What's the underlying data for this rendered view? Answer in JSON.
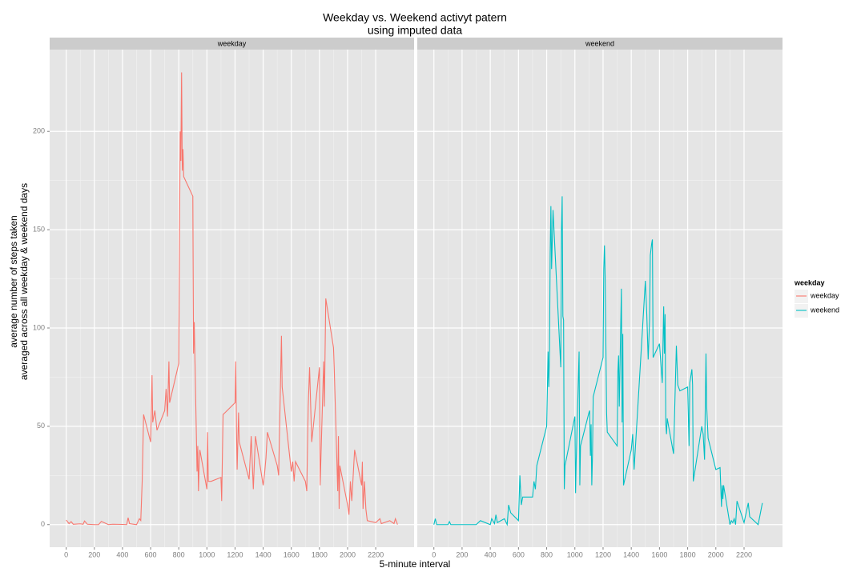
{
  "chart_data": {
    "type": "line",
    "title": "Weekday vs. Weekend activyt patern",
    "subtitle": "using imputed data",
    "x_label": "5-minute interval",
    "y_label": [
      "average number of steps taken",
      "averaged across all weekday & weekend days"
    ],
    "legend_title": "weekday",
    "xlim": [
      -117.75,
      2472.75
    ],
    "xticks": [
      0,
      200,
      400,
      600,
      800,
      1000,
      1200,
      1400,
      1600,
      1800,
      2000,
      2200
    ],
    "ylim": [
      -11.5,
      241.6
    ],
    "yticks": [
      0,
      50,
      100,
      150,
      200
    ],
    "grid": true,
    "series": [
      {
        "name": "weekday",
        "color": "#F8766D",
        "x": [
          0,
          20,
          35,
          50,
          100,
          120,
          130,
          150,
          200,
          230,
          250,
          300,
          330,
          400,
          430,
          440,
          450,
          500,
          520,
          530,
          540,
          550,
          600,
          610,
          615,
          630,
          645,
          700,
          710,
          720,
          730,
          735,
          800,
          810,
          815,
          820,
          825,
          830,
          835,
          900,
          905,
          910,
          915,
          930,
          935,
          940,
          945,
          950,
          1000,
          1005,
          1010,
          1030,
          1100,
          1105,
          1115,
          1130,
          1200,
          1205,
          1210,
          1215,
          1225,
          1230,
          1300,
          1315,
          1330,
          1345,
          1400,
          1410,
          1420,
          1430,
          1500,
          1510,
          1530,
          1535,
          1600,
          1610,
          1620,
          1630,
          1700,
          1710,
          1720,
          1730,
          1745,
          1800,
          1805,
          1830,
          1835,
          1845,
          1900,
          1905,
          1930,
          1935,
          1940,
          1945,
          2000,
          2010,
          2020,
          2030,
          2050,
          2100,
          2105,
          2110,
          2120,
          2130,
          2140,
          2200,
          2230,
          2240,
          2300,
          2330,
          2340,
          2355
        ],
        "values": [
          2.3,
          0.5,
          1.5,
          0.2,
          0.4,
          0.2,
          1.8,
          0.2,
          0,
          0,
          1.6,
          0,
          0.2,
          0.1,
          0,
          3.5,
          0.5,
          0,
          3,
          2.1,
          22,
          56,
          42,
          76,
          52,
          58,
          48,
          58,
          69,
          55,
          83,
          62,
          82,
          200,
          185,
          230,
          180,
          191,
          177,
          167,
          87,
          103,
          84,
          27,
          40,
          17,
          30,
          38,
          18,
          47,
          22,
          22,
          24,
          12,
          56,
          57,
          62,
          83,
          49,
          28,
          57,
          42,
          23,
          45,
          18,
          45,
          20,
          26,
          34,
          47,
          30,
          25,
          96,
          70,
          27,
          32,
          22,
          32,
          22,
          17,
          60,
          80,
          42,
          80,
          20,
          83,
          60,
          115,
          90,
          80,
          17,
          45,
          8,
          30,
          10,
          5,
          22,
          12,
          38,
          20,
          32,
          8,
          22,
          8,
          2,
          1,
          3,
          0.5,
          2,
          0.5,
          3,
          0
        ]
      },
      {
        "name": "weekend",
        "color": "#00BFC4",
        "x": [
          0,
          10,
          20,
          100,
          110,
          120,
          200,
          300,
          330,
          400,
          410,
          430,
          440,
          450,
          500,
          520,
          530,
          545,
          600,
          610,
          620,
          630,
          700,
          710,
          720,
          730,
          800,
          810,
          815,
          820,
          825,
          830,
          835,
          845,
          900,
          905,
          910,
          915,
          920,
          925,
          930,
          1000,
          1005,
          1010,
          1030,
          1035,
          1040,
          1100,
          1105,
          1110,
          1115,
          1120,
          1125,
          1130,
          1200,
          1205,
          1210,
          1215,
          1225,
          1230,
          1300,
          1305,
          1310,
          1315,
          1330,
          1335,
          1340,
          1345,
          1400,
          1410,
          1420,
          1500,
          1510,
          1520,
          1530,
          1535,
          1545,
          1550,
          1555,
          1600,
          1610,
          1620,
          1630,
          1635,
          1640,
          1645,
          1650,
          1655,
          1700,
          1710,
          1720,
          1730,
          1745,
          1800,
          1810,
          1815,
          1830,
          1835,
          1840,
          1900,
          1910,
          1920,
          1930,
          1935,
          1945,
          2000,
          2030,
          2040,
          2045,
          2050,
          2055,
          2100,
          2110,
          2120,
          2130,
          2140,
          2150,
          2200,
          2230,
          2240,
          2300,
          2330
        ],
        "values": [
          0,
          3,
          0,
          0,
          1.5,
          0,
          0,
          0,
          2,
          0,
          3,
          0.5,
          5,
          1,
          3,
          0,
          10,
          6,
          2,
          25,
          10,
          14,
          14,
          22,
          18,
          30,
          50,
          88,
          70,
          88,
          138,
          162,
          130,
          160,
          80,
          150,
          167,
          106,
          104,
          18,
          30,
          55,
          16,
          34,
          88,
          20,
          40,
          57,
          58,
          35,
          51,
          20,
          35,
          65,
          85,
          130,
          142,
          125,
          57,
          47,
          40,
          78,
          86,
          60,
          120,
          52,
          97,
          20,
          38,
          46,
          28,
          124,
          107,
          84,
          104,
          137,
          143,
          145,
          85,
          92,
          82,
          72,
          111,
          87,
          107,
          51,
          46,
          54,
          36,
          64,
          91,
          71,
          68,
          70,
          40,
          72,
          79,
          71,
          22,
          50,
          46,
          33,
          87,
          60,
          44,
          28,
          29,
          9,
          20,
          13,
          20,
          0,
          2,
          1,
          3,
          0,
          12,
          1,
          11,
          4,
          0,
          11
        ]
      }
    ]
  }
}
